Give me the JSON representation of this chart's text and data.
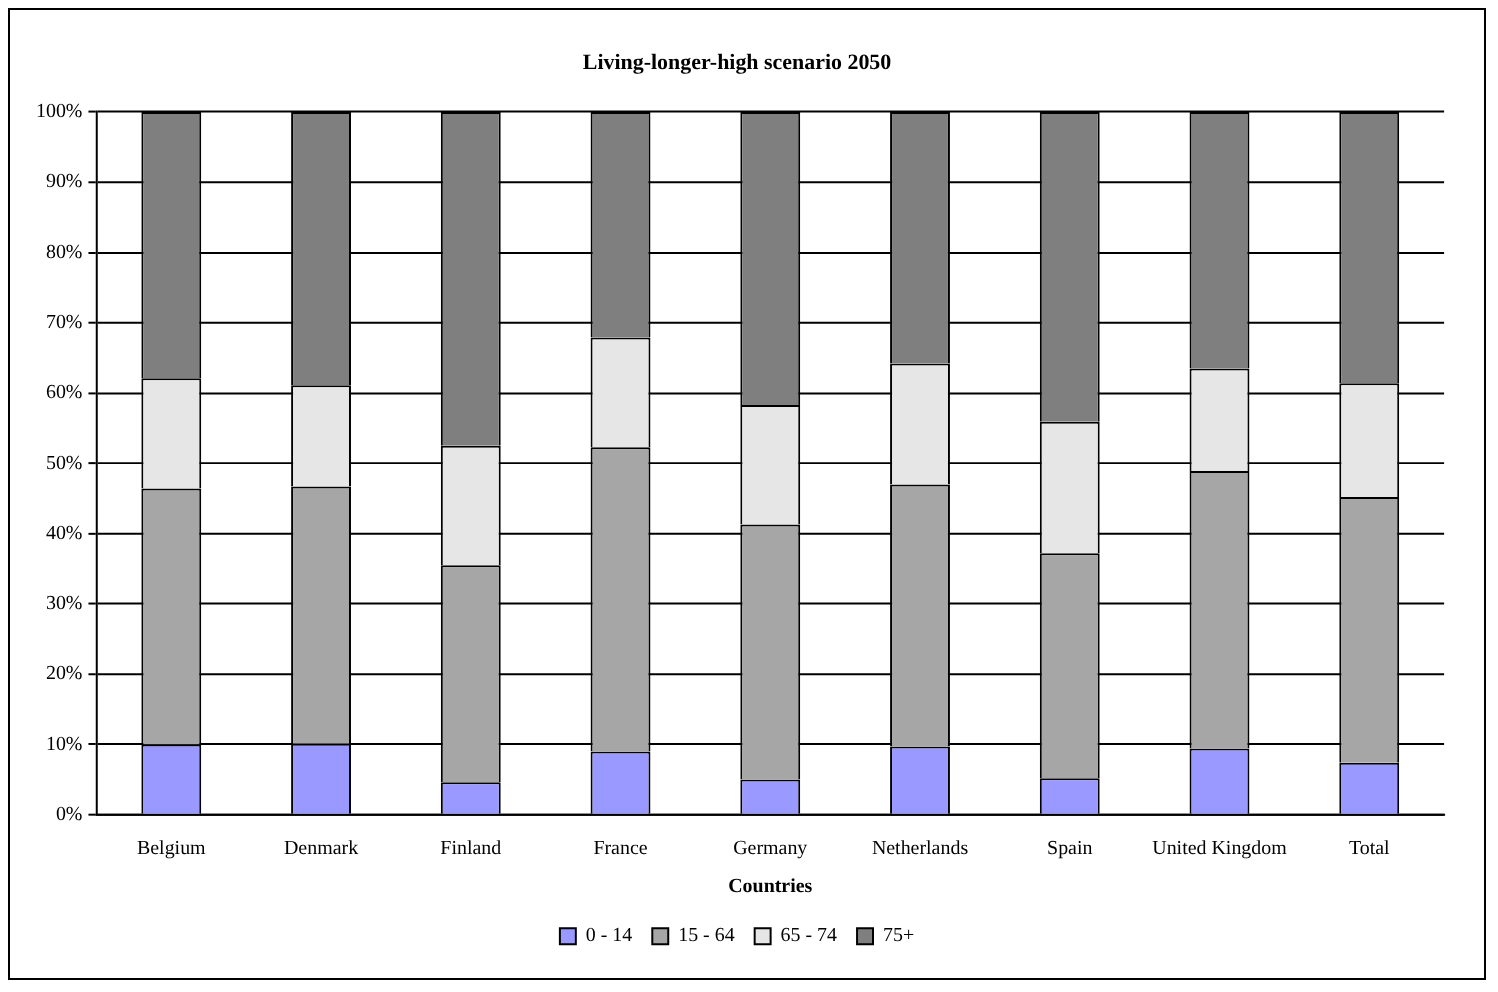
{
  "chart_data": {
    "type": "bar",
    "title": "Living-longer-high scenario 2050",
    "xlabel": "Countries",
    "stacked": true,
    "legend": "bottom",
    "grid": "y",
    "categories": [
      "Belgium",
      "Denmark",
      "Finland",
      "France",
      "Germany",
      "Netherlands",
      "Spain",
      "United Kingdom",
      "Total"
    ],
    "ylim": [
      0,
      100
    ],
    "yticks": [
      {
        "value": 0,
        "label": "0%"
      },
      {
        "value": 10,
        "label": "10%"
      },
      {
        "value": 20,
        "label": "20%"
      },
      {
        "value": 30,
        "label": "30%"
      },
      {
        "value": 40,
        "label": "40%"
      },
      {
        "value": 50,
        "label": "50%"
      },
      {
        "value": 60,
        "label": "60%"
      },
      {
        "value": 70,
        "label": "70%"
      },
      {
        "value": 80,
        "label": "80%"
      },
      {
        "value": 90,
        "label": "90%"
      },
      {
        "value": 100,
        "label": "100%"
      }
    ],
    "series": [
      {
        "name": "0 - 14",
        "color": "#9999ff",
        "values": [
          10.0,
          10.1,
          4.6,
          9.0,
          5.0,
          9.7,
          5.2,
          9.4,
          7.4
        ]
      },
      {
        "name": "15 - 64",
        "color": "#a6a6a6",
        "values": [
          36.4,
          36.6,
          30.9,
          43.3,
          36.3,
          37.3,
          32.0,
          39.5,
          37.8
        ]
      },
      {
        "name": "65 - 74",
        "color": "#e6e6e6",
        "values": [
          15.7,
          14.4,
          17.0,
          15.6,
          17.0,
          17.2,
          18.7,
          14.6,
          16.2
        ]
      },
      {
        "name": "75+",
        "color": "#7f7f7f",
        "values": [
          37.9,
          38.9,
          47.5,
          32.1,
          41.7,
          35.8,
          44.1,
          36.5,
          38.6
        ]
      }
    ]
  }
}
